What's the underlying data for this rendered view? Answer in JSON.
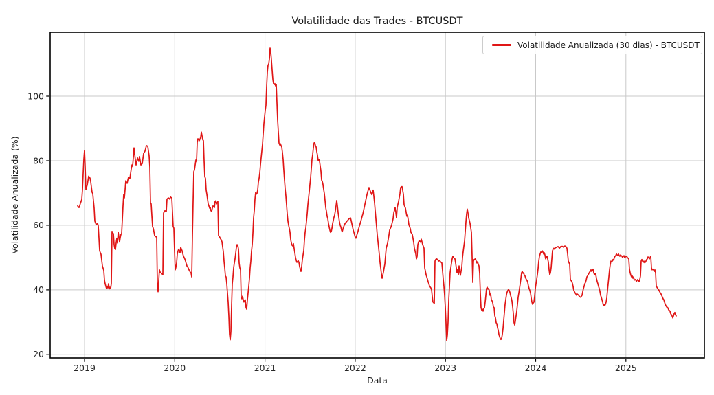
{
  "page": {
    "background": "#ffffff"
  },
  "colors": {
    "line": "#e01616",
    "grid": "#c9c9c9",
    "spine": "#000000",
    "text": "#262626",
    "legend_border": "#cccccc"
  },
  "chart_data": {
    "type": "line",
    "title": "Volatilidade das Trades - BTCUSDT",
    "xlabel": "Data",
    "ylabel": "Volatilidade Anualizada (%)",
    "grid": true,
    "legend_position": "upper right",
    "x_ticks": [
      2019,
      2020,
      2021,
      2022,
      2023,
      2024,
      2025
    ],
    "y_ticks": [
      20,
      40,
      60,
      80,
      100
    ],
    "xlim": [
      2018.619,
      2025.87
    ],
    "ylim": [
      18.9,
      119.8
    ],
    "series": [
      {
        "name": "Volatilidade Anualizada (30 dias) - BTCUSDT",
        "color": "#e01616",
        "x_unit": "decimal_year",
        "y_unit": "percent_annualized",
        "sampling": "uniform",
        "x_start": 2018.924,
        "x_end": 2025.558,
        "values": [
          66.0,
          65.7,
          65.5,
          66.1,
          66.8,
          67.4,
          68.0,
          71.0,
          76.0,
          80.5,
          83.2,
          78.0,
          71.0,
          71.8,
          72.5,
          73.8,
          75.2,
          74.9,
          74.6,
          73.5,
          71.8,
          70.2,
          69.8,
          67.5,
          65.3,
          61.3,
          60.7,
          60.2,
          60.4,
          60.6,
          59.8,
          56.0,
          52.1,
          51.5,
          51.0,
          49.2,
          47.4,
          46.7,
          46.0,
          43.0,
          41.9,
          41.1,
          40.4,
          41.0,
          40.6,
          41.9,
          40.3,
          40.8,
          40.4,
          42.0,
          58.1,
          57.6,
          57.4,
          54.0,
          52.8,
          52.5,
          54.5,
          56.0,
          54.5,
          57.9,
          56.5,
          54.8,
          56.2,
          57.2,
          57.4,
          61.7,
          66.0,
          69.6,
          68.5,
          71.0,
          73.8,
          73.2,
          73.0,
          74.0,
          74.9,
          74.7,
          74.5,
          76.0,
          77.5,
          78.7,
          78.3,
          81.0,
          84.0,
          82.0,
          80.2,
          78.7,
          79.8,
          80.9,
          80.3,
          79.8,
          81.3,
          80.0,
          78.7,
          78.9,
          79.1,
          80.7,
          82.3,
          82.6,
          83.0,
          83.8,
          84.7,
          84.6,
          84.5,
          83.0,
          81.5,
          78.0,
          67.0,
          66.6,
          63.0,
          59.6,
          59.1,
          58.0,
          56.8,
          56.6,
          56.4,
          56.4,
          42.0,
          39.4,
          43.0,
          46.2,
          45.5,
          45.3,
          45.1,
          44.9,
          44.7,
          63.8,
          64.2,
          64.5,
          64.4,
          64.3,
          68.1,
          68.3,
          68.5,
          68.3,
          68.1,
          68.8,
          68.6,
          68.5,
          64.0,
          59.6,
          59.1,
          52.0,
          46.2,
          47.0,
          48.3,
          51.1,
          52.0,
          52.6,
          52.0,
          51.5,
          53.2,
          52.6,
          52.1,
          51.2,
          50.4,
          50.0,
          49.5,
          48.9,
          48.1,
          47.4,
          47.2,
          46.7,
          46.2,
          45.8,
          45.4,
          45.2,
          44.0,
          56.8,
          67.4,
          76.6,
          77.2,
          78.7,
          80.2,
          79.8,
          85.7,
          86.8,
          86.6,
          86.2,
          86.7,
          87.2,
          88.9,
          87.7,
          86.5,
          86.2,
          80.0,
          75.1,
          74.5,
          70.9,
          69.6,
          68.1,
          66.6,
          66.0,
          65.3,
          65.5,
          64.5,
          64.3,
          65.3,
          66.0,
          65.7,
          65.5,
          67.4,
          67.6,
          66.6,
          67.0,
          67.4,
          56.8,
          56.6,
          56.2,
          55.8,
          55.5,
          54.9,
          53.3,
          51.7,
          48.9,
          46.8,
          44.3,
          44.0,
          41.9,
          39.0,
          36.2,
          31.9,
          26.2,
          24.5,
          27.0,
          35.0,
          41.9,
          44.0,
          46.8,
          48.3,
          49.6,
          51.3,
          53.2,
          54.0,
          53.8,
          52.6,
          48.3,
          46.8,
          46.2,
          37.7,
          37.2,
          38.0,
          36.9,
          36.2,
          36.6,
          36.9,
          34.5,
          34.0,
          36.9,
          39.0,
          41.1,
          43.5,
          46.8,
          48.9,
          52.0,
          54.0,
          57.5,
          62.3,
          64.5,
          68.1,
          70.2,
          69.6,
          69.9,
          70.9,
          73.4,
          74.5,
          76.2,
          78.7,
          80.9,
          83.0,
          85.1,
          88.3,
          91.5,
          93.6,
          95.7,
          97.2,
          103.0,
          107.4,
          109.6,
          110.0,
          111.5,
          114.9,
          113.8,
          111.1,
          108.1,
          105.3,
          103.9,
          103.6,
          103.9,
          103.2,
          103.6,
          98.0,
          92.6,
          89.0,
          85.5,
          84.9,
          85.3,
          84.7,
          84.3,
          82.5,
          80.4,
          77.0,
          74.0,
          71.2,
          69.1,
          66.3,
          63.5,
          61.3,
          60.0,
          59.0,
          57.9,
          55.6,
          54.5,
          53.8,
          53.6,
          54.3,
          52.8,
          51.5,
          50.0,
          49.2,
          48.5,
          48.7,
          49.0,
          48.5,
          47.2,
          46.4,
          45.7,
          47.2,
          49.4,
          50.8,
          52.1,
          55.4,
          57.8,
          59.2,
          61.3,
          63.5,
          66.3,
          68.4,
          70.4,
          72.6,
          74.7,
          77.5,
          80.4,
          81.9,
          84.0,
          85.5,
          85.7,
          84.7,
          84.3,
          82.8,
          81.7,
          80.1,
          80.4,
          79.8,
          78.3,
          76.8,
          74.0,
          73.6,
          72.6,
          71.1,
          69.8,
          67.7,
          65.5,
          64.3,
          62.8,
          62.1,
          60.6,
          59.5,
          58.5,
          57.8,
          58.0,
          59.0,
          60.5,
          61.5,
          62.5,
          63.2,
          64.5,
          66.0,
          67.7,
          66.0,
          64.0,
          62.5,
          61.0,
          60.0,
          59.5,
          58.5,
          58.0,
          58.8,
          59.5,
          60.0,
          60.5,
          60.8,
          61.0,
          61.3,
          61.5,
          61.8,
          62.0,
          62.2,
          62.3,
          61.5,
          60.5,
          59.5,
          58.5,
          57.8,
          57.0,
          56.2,
          56.0,
          56.8,
          57.5,
          58.2,
          59.0,
          59.8,
          60.5,
          61.2,
          62.0,
          62.8,
          63.5,
          64.5,
          65.5,
          66.5,
          67.5,
          68.5,
          69.5,
          70.3,
          71.0,
          71.7,
          71.1,
          70.5,
          70.0,
          69.5,
          70.2,
          70.9,
          69.0,
          67.0,
          64.5,
          62.0,
          59.5,
          57.0,
          55.0,
          53.0,
          50.8,
          48.5,
          46.8,
          45.0,
          43.6,
          44.5,
          45.5,
          46.8,
          48.0,
          50.5,
          52.9,
          53.7,
          54.5,
          55.7,
          57.0,
          58.5,
          59.0,
          59.5,
          60.2,
          61.1,
          62.0,
          63.8,
          64.7,
          65.5,
          64.0,
          62.3,
          65.5,
          66.5,
          67.4,
          68.6,
          69.8,
          71.7,
          71.9,
          72.0,
          70.8,
          69.6,
          66.4,
          65.8,
          65.3,
          64.0,
          62.8,
          63.1,
          61.7,
          60.2,
          59.6,
          59.0,
          57.8,
          57.5,
          57.1,
          55.9,
          54.7,
          52.9,
          52.0,
          51.1,
          49.6,
          50.4,
          54.0,
          54.7,
          55.3,
          55.0,
          54.7,
          55.7,
          54.9,
          54.0,
          53.5,
          52.9,
          46.8,
          45.8,
          44.7,
          44.0,
          43.3,
          42.5,
          41.9,
          41.2,
          40.9,
          40.6,
          40.0,
          38.0,
          36.2,
          36.0,
          35.8,
          48.9,
          49.4,
          49.6,
          49.5,
          49.4,
          48.9,
          49.0,
          49.0,
          48.7,
          48.5,
          48.3,
          45.8,
          43.3,
          41.1,
          38.3,
          34.7,
          29.8,
          24.3,
          26.0,
          30.0,
          36.8,
          41.0,
          45.3,
          46.8,
          48.3,
          49.6,
          50.4,
          50.0,
          49.7,
          49.6,
          48.3,
          46.8,
          45.3,
          46.2,
          44.7,
          47.4,
          45.5,
          44.5,
          45.8,
          47.0,
          50.0,
          51.8,
          53.5,
          55.0,
          58.0,
          61.0,
          63.5,
          65.0,
          63.8,
          62.3,
          61.5,
          60.6,
          59.2,
          57.8,
          50.4,
          42.3,
          48.9,
          49.4,
          49.5,
          49.6,
          48.9,
          48.3,
          48.7,
          47.9,
          47.4,
          45.0,
          39.0,
          34.5,
          33.7,
          34.0,
          33.4,
          34.2,
          34.4,
          36.2,
          38.3,
          40.4,
          40.8,
          40.2,
          40.4,
          39.8,
          38.3,
          38.7,
          36.9,
          36.6,
          36.0,
          34.7,
          34.5,
          32.0,
          31.3,
          29.8,
          29.5,
          28.3,
          27.5,
          26.2,
          25.5,
          24.9,
          24.6,
          25.0,
          26.2,
          28.0,
          30.5,
          33.0,
          35.5,
          37.0,
          38.5,
          39.3,
          39.8,
          40.1,
          39.8,
          39.2,
          38.3,
          37.5,
          36.5,
          34.7,
          32.6,
          29.8,
          29.1,
          30.4,
          31.9,
          33.4,
          35.5,
          37.7,
          39.0,
          40.4,
          41.9,
          43.5,
          45.3,
          45.7,
          45.1,
          45.3,
          44.5,
          44.3,
          43.6,
          43.2,
          42.9,
          42.3,
          41.1,
          40.4,
          39.8,
          39.0,
          37.5,
          36.2,
          35.5,
          35.9,
          36.2,
          38.0,
          40.4,
          41.9,
          43.2,
          44.7,
          46.5,
          48.9,
          50.4,
          51.1,
          51.7,
          51.5,
          52.1,
          51.7,
          51.1,
          51.5,
          50.8,
          49.6,
          50.0,
          50.4,
          49.6,
          48.5,
          46.2,
          44.7,
          45.3,
          46.8,
          49.5,
          52.1,
          52.6,
          52.9,
          52.6,
          53.0,
          53.1,
          53.2,
          53.3,
          53.4,
          53.2,
          52.9,
          53.1,
          53.4,
          53.4,
          53.5,
          53.4,
          53.2,
          53.4,
          53.6,
          53.4,
          53.3,
          52.9,
          51.1,
          48.9,
          48.4,
          47.9,
          43.2,
          42.9,
          42.6,
          42.0,
          41.0,
          39.8,
          39.4,
          39.0,
          38.7,
          38.3,
          38.7,
          38.5,
          38.3,
          38.0,
          37.8,
          37.7,
          38.0,
          38.3,
          39.4,
          40.4,
          41.1,
          41.9,
          42.3,
          43.0,
          44.0,
          44.3,
          44.7,
          45.1,
          45.5,
          45.7,
          46.2,
          45.7,
          46.2,
          46.4,
          45.3,
          44.7,
          45.1,
          44.7,
          43.5,
          42.6,
          41.9,
          41.1,
          40.4,
          39.5,
          38.3,
          37.7,
          36.9,
          36.2,
          35.1,
          35.5,
          35.1,
          35.5,
          36.2,
          37.5,
          39.8,
          41.9,
          44.0,
          46.2,
          47.8,
          48.9,
          48.7,
          48.9,
          49.4,
          49.2,
          50.0,
          50.4,
          50.6,
          51.1,
          50.8,
          50.6,
          51.1,
          50.6,
          50.4,
          50.8,
          50.6,
          50.4,
          50.0,
          50.4,
          50.6,
          50.0,
          50.2,
          50.3,
          50.4,
          50.0,
          49.8,
          49.6,
          46.4,
          45.3,
          44.5,
          44.0,
          44.3,
          43.6,
          44.0,
          43.0,
          43.1,
          43.2,
          42.6,
          42.9,
          43.2,
          42.9,
          42.6,
          43.2,
          44.3,
          48.9,
          49.4,
          48.9,
          48.5,
          48.9,
          48.4,
          48.5,
          48.9,
          49.4,
          49.6,
          50.2,
          50.0,
          49.6,
          50.0,
          50.4,
          46.8,
          46.2,
          46.4,
          46.2,
          45.7,
          46.2,
          45.3,
          41.1,
          40.8,
          40.4,
          40.2,
          39.8,
          39.4,
          39.0,
          38.7,
          38.2,
          37.7,
          37.2,
          36.9,
          36.2,
          35.5,
          35.1,
          34.7,
          34.6,
          34.4,
          33.8,
          33.6,
          33.4,
          32.6,
          32.3,
          31.9,
          31.3,
          31.9,
          32.6,
          33.0,
          32.3,
          31.9
        ]
      }
    ]
  }
}
